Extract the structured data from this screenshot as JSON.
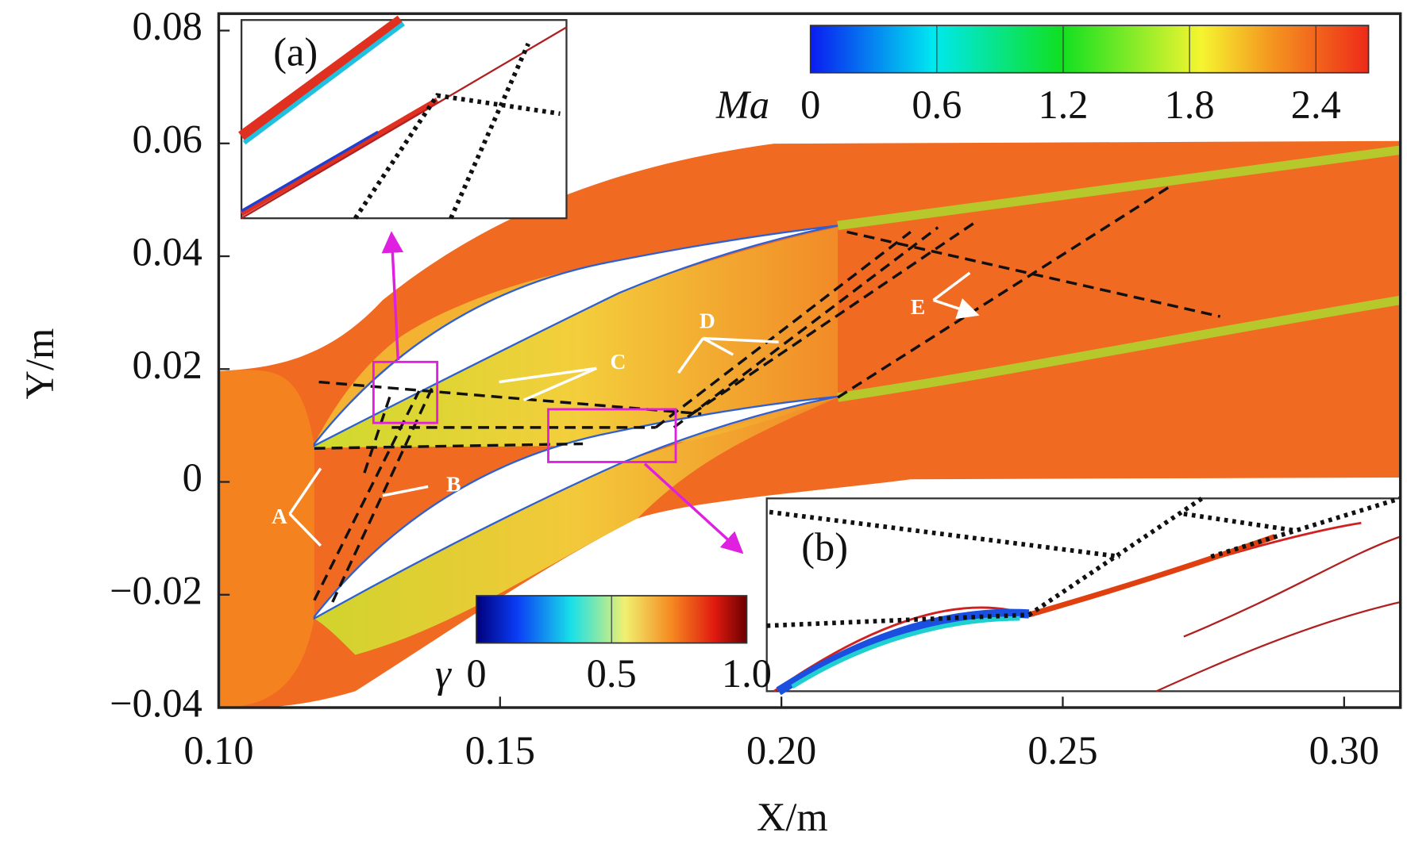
{
  "chart_data": {
    "type": "contour",
    "xlabel": "X/m",
    "ylabel": "Y/m",
    "xlim": [
      0.1,
      0.31
    ],
    "ylim": [
      -0.04,
      0.083
    ],
    "xticks": [
      {
        "value": 0.1,
        "label": "0.10"
      },
      0.15,
      {
        "value": 0.2,
        "label": "0.20"
      },
      0.25,
      {
        "value": 0.3,
        "label": "0.30"
      }
    ],
    "yticks": [
      {
        "value": -0.04,
        "label": "−0.04"
      },
      {
        "value": -0.02,
        "label": "−0.02"
      },
      0,
      0.02,
      0.04,
      0.06,
      0.08
    ],
    "colorbars": [
      {
        "label": "Ma",
        "lim": [
          0,
          2.65
        ],
        "ticks": [
          0,
          0.6,
          1.2,
          1.8,
          2.4
        ]
      },
      {
        "label": "γ",
        "lim": [
          0,
          1
        ],
        "ticks": [
          0,
          0.5,
          {
            "value": 1,
            "label": "1.0"
          }
        ]
      }
    ],
    "annotations": [
      "(a)",
      "(b)",
      "A",
      "B",
      "C",
      "D",
      "E"
    ]
  }
}
